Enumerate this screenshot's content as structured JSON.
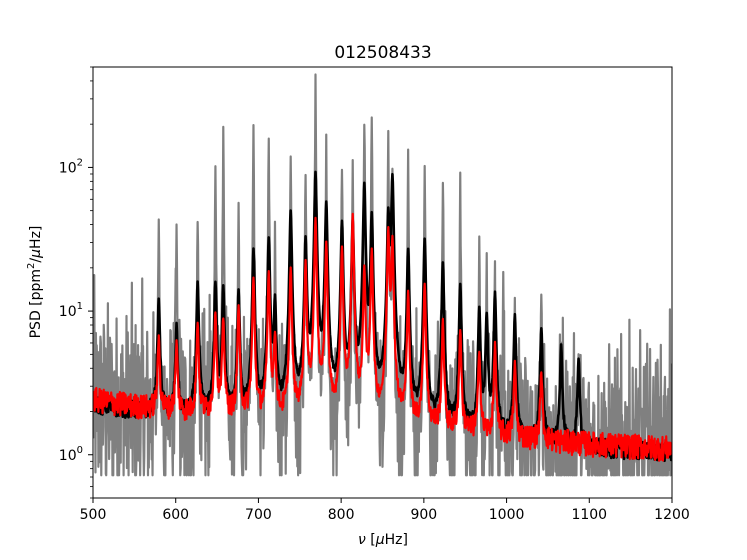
{
  "chart_data": {
    "type": "line",
    "title": "012508433",
    "xlabel": {
      "symbol": "ν",
      "unit_open": " [",
      "unit_greek": "μ",
      "unit_rest": "Hz]"
    },
    "ylabel": {
      "prefix": "PSD [ppm",
      "sup": "2",
      "mid": "/",
      "greek": "μ",
      "suffix": "Hz]"
    },
    "xlim": [
      500,
      1200
    ],
    "ylim": [
      0.5,
      500
    ],
    "yscale": "log",
    "x_ticks": [
      500,
      600,
      700,
      800,
      900,
      1000,
      1100,
      1200
    ],
    "x_tick_labels": [
      "500",
      "600",
      "700",
      "800",
      "900",
      "1000",
      "1100",
      "1200"
    ],
    "y_ticks": [
      1,
      10,
      100
    ],
    "y_tick_labels": [
      {
        "base": "10",
        "exp": "0"
      },
      {
        "base": "10",
        "exp": "1"
      },
      {
        "base": "10",
        "exp": "2"
      }
    ],
    "grid": false,
    "legend": "none",
    "frequency_step": 0.5,
    "series": [
      {
        "color": "#808080",
        "role": "raw spectrum",
        "floor": 0.72,
        "peaks": [
          {
            "x": 579.5,
            "y": 55
          },
          {
            "x": 601,
            "y": 48
          },
          {
            "x": 626.5,
            "y": 52
          },
          {
            "x": 648,
            "y": 152
          },
          {
            "x": 657.5,
            "y": 200
          },
          {
            "x": 676,
            "y": 65
          },
          {
            "x": 694,
            "y": 205
          },
          {
            "x": 712.5,
            "y": 200
          },
          {
            "x": 720,
            "y": 38
          },
          {
            "x": 739,
            "y": 170
          },
          {
            "x": 757,
            "y": 140
          },
          {
            "x": 769,
            "y": 480
          },
          {
            "x": 782,
            "y": 170
          },
          {
            "x": 801,
            "y": 140
          },
          {
            "x": 814,
            "y": 140
          },
          {
            "x": 828,
            "y": 305
          },
          {
            "x": 837,
            "y": 330
          },
          {
            "x": 857,
            "y": 230
          },
          {
            "x": 862,
            "y": 145
          },
          {
            "x": 881,
            "y": 140
          },
          {
            "x": 901,
            "y": 120
          },
          {
            "x": 923,
            "y": 120
          },
          {
            "x": 944,
            "y": 95
          },
          {
            "x": 967,
            "y": 40
          },
          {
            "x": 976,
            "y": 25
          },
          {
            "x": 986,
            "y": 23
          },
          {
            "x": 996,
            "y": 19
          },
          {
            "x": 1010,
            "y": 18
          },
          {
            "x": 1042,
            "y": 14
          },
          {
            "x": 1087,
            "y": 5.5
          }
        ]
      },
      {
        "color": "#000000",
        "role": "smoothed spectrum",
        "peaks": [
          {
            "x": 579.5,
            "y": 10
          },
          {
            "x": 601,
            "y": 6
          },
          {
            "x": 626.5,
            "y": 14
          },
          {
            "x": 648,
            "y": 14
          },
          {
            "x": 657.5,
            "y": 13
          },
          {
            "x": 676,
            "y": 12
          },
          {
            "x": 694,
            "y": 25
          },
          {
            "x": 712.5,
            "y": 30
          },
          {
            "x": 720,
            "y": 10
          },
          {
            "x": 739,
            "y": 48
          },
          {
            "x": 757,
            "y": 30
          },
          {
            "x": 769,
            "y": 90
          },
          {
            "x": 782,
            "y": 55
          },
          {
            "x": 801,
            "y": 40
          },
          {
            "x": 814,
            "y": 40
          },
          {
            "x": 828,
            "y": 75
          },
          {
            "x": 837,
            "y": 45
          },
          {
            "x": 857,
            "y": 45
          },
          {
            "x": 862,
            "y": 85
          },
          {
            "x": 881,
            "y": 25
          },
          {
            "x": 901,
            "y": 30
          },
          {
            "x": 923,
            "y": 20
          },
          {
            "x": 944,
            "y": 14
          },
          {
            "x": 967,
            "y": 9
          },
          {
            "x": 976,
            "y": 8
          },
          {
            "x": 986,
            "y": 12
          },
          {
            "x": 1010,
            "y": 8
          },
          {
            "x": 1042,
            "y": 6.5
          },
          {
            "x": 1066,
            "y": 4.5
          },
          {
            "x": 1087,
            "y": 3.5
          }
        ]
      },
      {
        "color": "#ff0000",
        "role": "fitted model",
        "peaks": [
          {
            "x": 579.5,
            "y": 4.5
          },
          {
            "x": 601,
            "y": 4
          },
          {
            "x": 626.5,
            "y": 6.5
          },
          {
            "x": 648,
            "y": 8
          },
          {
            "x": 657.5,
            "y": 7
          },
          {
            "x": 676,
            "y": 9
          },
          {
            "x": 694,
            "y": 15
          },
          {
            "x": 712.5,
            "y": 17
          },
          {
            "x": 720,
            "y": 5
          },
          {
            "x": 739,
            "y": 18
          },
          {
            "x": 757,
            "y": 20
          },
          {
            "x": 769,
            "y": 42
          },
          {
            "x": 782,
            "y": 28
          },
          {
            "x": 801,
            "y": 26
          },
          {
            "x": 814,
            "y": 45
          },
          {
            "x": 828,
            "y": 18
          },
          {
            "x": 837,
            "y": 25
          },
          {
            "x": 857,
            "y": 35
          },
          {
            "x": 862,
            "y": 30
          },
          {
            "x": 881,
            "y": 12
          },
          {
            "x": 901,
            "y": 14
          },
          {
            "x": 923,
            "y": 7
          },
          {
            "x": 944,
            "y": 6
          },
          {
            "x": 967,
            "y": 4
          },
          {
            "x": 986,
            "y": 4.5
          },
          {
            "x": 1010,
            "y": 3
          },
          {
            "x": 1042,
            "y": 2.5
          }
        ]
      }
    ]
  }
}
